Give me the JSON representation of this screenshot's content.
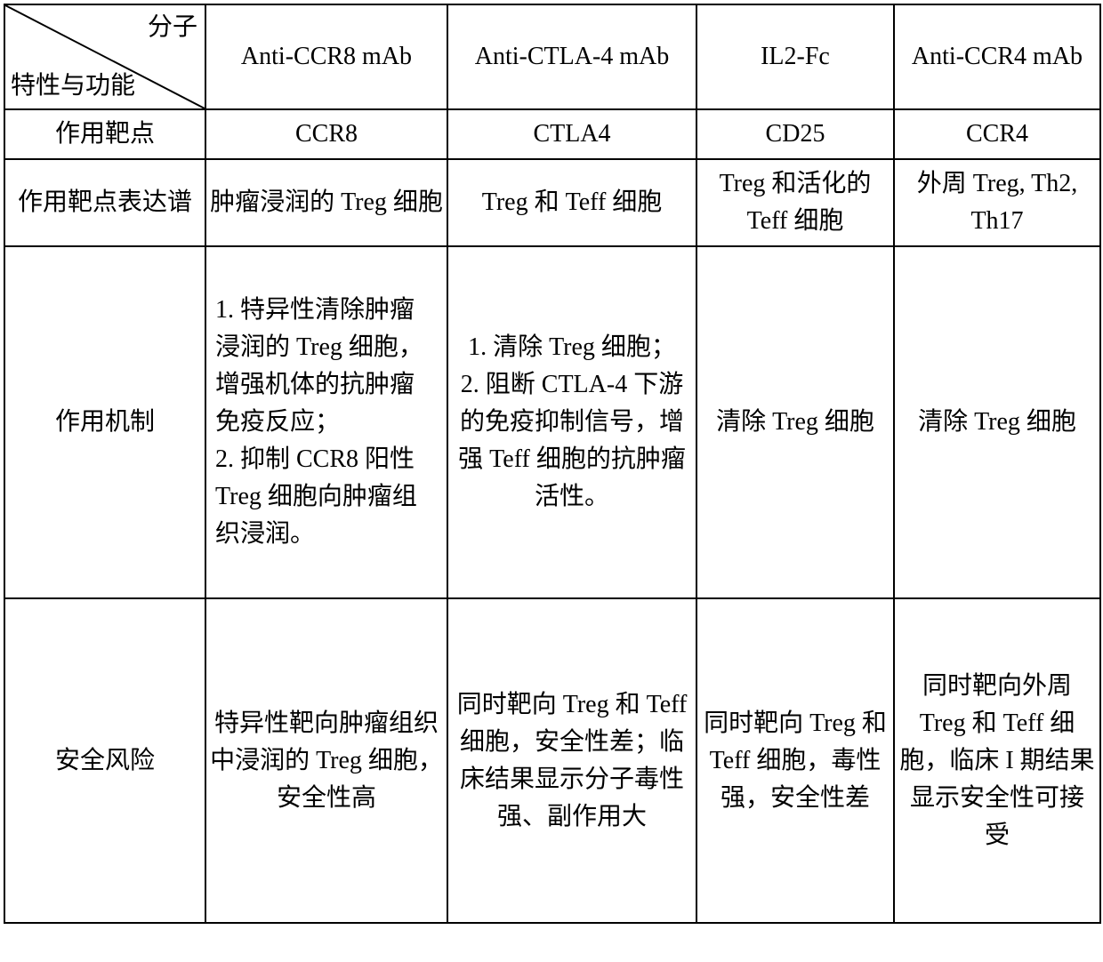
{
  "header": {
    "diag_top": "分子",
    "diag_bottom": "特性与功能",
    "col1": "Anti-CCR8 mAb",
    "col2": "Anti-CTLA-4 mAb",
    "col3": "IL2-Fc",
    "col4": "Anti-CCR4 mAb"
  },
  "rows": {
    "target": {
      "label": "作用靶点",
      "c1": "CCR8",
      "c2": "CTLA4",
      "c3": "CD25",
      "c4": "CCR4"
    },
    "expr": {
      "label": "作用靶点表达谱",
      "c1": "肿瘤浸润的 Treg 细胞",
      "c2": "Treg 和 Teff 细胞",
      "c3": "Treg 和活化的 Teff 细胞",
      "c4": "外周 Treg, Th2, Th17"
    },
    "mech": {
      "label": "作用机制",
      "c1": "1. 特异性清除肿瘤浸润的 Treg 细胞，增强机体的抗肿瘤免疫反应；\n2. 抑制 CCR8 阳性 Treg 细胞向肿瘤组织浸润。",
      "c2": "1. 清除 Treg 细胞；\n2. 阻断 CTLA-4 下游的免疫抑制信号，增强 Teff 细胞的抗肿瘤活性。",
      "c3": "清除 Treg 细胞",
      "c4": "清除 Treg 细胞"
    },
    "risk": {
      "label": "安全风险",
      "c1": "特异性靶向肿瘤组织中浸润的 Treg 细胞，安全性高",
      "c2": "同时靶向 Treg 和 Teff 细胞，安全性差；临床结果显示分子毒性强、副作用大",
      "c3": "同时靶向 Treg 和 Teff 细胞，毒性强，安全性差",
      "c4": "同时靶向外周 Treg 和 Teff 细胞，临床 I 期结果显示安全性可接受"
    }
  },
  "style": {
    "border_color": "#000000",
    "background": "#ffffff",
    "font_size_pt": 21,
    "line_stroke_width": 2
  }
}
